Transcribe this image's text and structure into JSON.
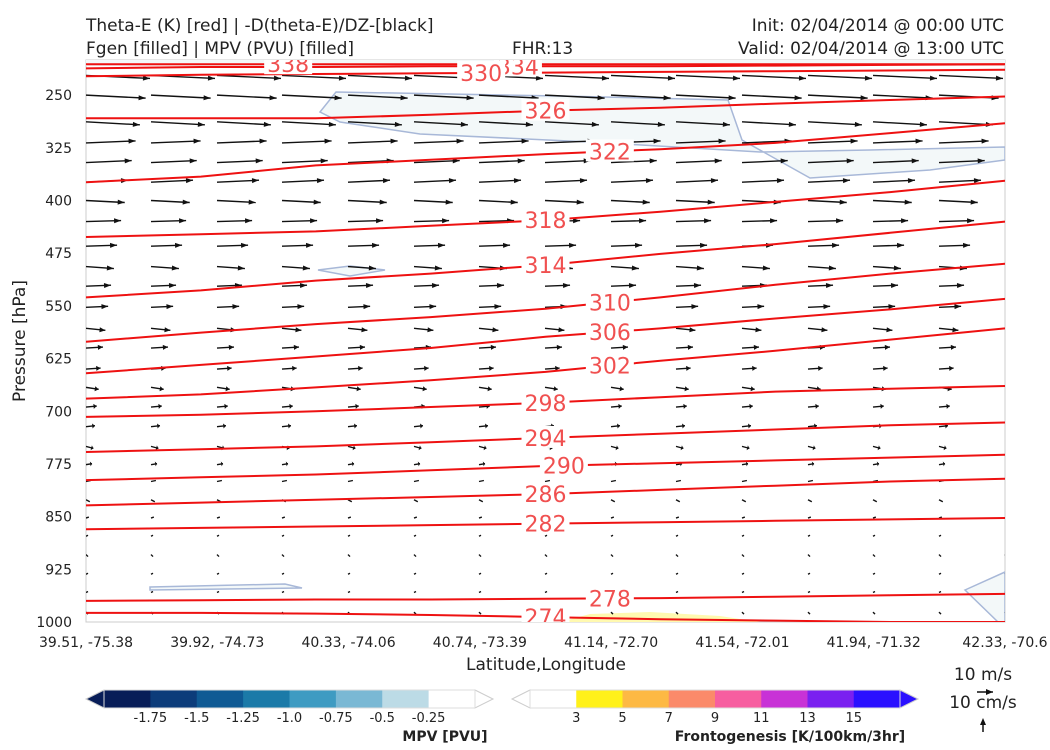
{
  "header": {
    "title_line1": "Theta-E (K) [red] | -D(theta-E)/DZ-[black]",
    "title_line2": "Fgen [filled] | MPV (PVU) [filled]",
    "fhr": "FHR:13",
    "init": "Init: 02/04/2014 @ 00:00 UTC",
    "valid": "Valid: 02/04/2014 @ 13:00 UTC"
  },
  "chart_data": {
    "type": "cross-section",
    "xlabel": "Latitude,Longitude",
    "ylabel": "Pressure [hPa]",
    "x_ticks": [
      "39.51, -75.38",
      "39.92, -74.73",
      "40.33, -74.06",
      "40.74, -73.39",
      "41.14, -72.70",
      "41.54, -72.01",
      "41.94, -71.32",
      "42.33, -70.6"
    ],
    "y_ticks": [
      250,
      325,
      400,
      475,
      550,
      625,
      700,
      775,
      850,
      925,
      1000
    ],
    "ylim": [
      1000,
      200
    ],
    "theta_e_color": "#ee1111",
    "theta_e_contours": [
      {
        "value": 338,
        "label": "338",
        "y": [
          206,
          206,
          206,
          206,
          206,
          206,
          206,
          206,
          206
        ]
      },
      {
        "value": 334,
        "label": "334",
        "y": [
          212,
          210,
          210,
          209,
          209,
          209,
          208,
          207,
          206
        ]
      },
      {
        "value": 330,
        "label": "330",
        "y": [
          223,
          221,
          220,
          219,
          218,
          217,
          216,
          215,
          214
        ]
      },
      {
        "value": 326,
        "label": "326",
        "y": [
          283,
          283,
          283,
          278,
          272,
          268,
          262,
          257,
          252
        ]
      },
      {
        "value": 322,
        "label": "322",
        "y": [
          374,
          366,
          350,
          342,
          334,
          327,
          318,
          304,
          290
        ]
      },
      {
        "value": 318,
        "label": "318",
        "y": [
          452,
          448,
          444,
          436,
          428,
          416,
          402,
          388,
          372
        ]
      },
      {
        "value": 314,
        "label": "314",
        "y": [
          538,
          528,
          514,
          504,
          492,
          476,
          462,
          446,
          430
        ]
      },
      {
        "value": 310,
        "label": "310",
        "y": [
          601,
          588,
          576,
          566,
          554,
          538,
          520,
          504,
          490
        ]
      },
      {
        "value": 306,
        "label": "306",
        "y": [
          646,
          634,
          622,
          610,
          594,
          582,
          568,
          555,
          540
        ]
      },
      {
        "value": 302,
        "label": "302",
        "y": [
          682,
          676,
          666,
          656,
          644,
          628,
          614,
          598,
          582
        ]
      },
      {
        "value": 298,
        "label": "298",
        "y": [
          708,
          705,
          700,
          694,
          688,
          680,
          672,
          668,
          664
        ]
      },
      {
        "value": 294,
        "label": "294",
        "y": [
          758,
          754,
          750,
          744,
          738,
          732,
          726,
          720,
          716
        ]
      },
      {
        "value": 290,
        "label": "290",
        "y": [
          798,
          794,
          790,
          784,
          778,
          774,
          770,
          766,
          762
        ]
      },
      {
        "value": 286,
        "label": "286",
        "y": [
          834,
          830,
          826,
          822,
          818,
          812,
          806,
          800,
          796
        ]
      },
      {
        "value": 282,
        "label": "282",
        "y": [
          868,
          866,
          864,
          862,
          860,
          858,
          856,
          854,
          852
        ]
      },
      {
        "value": 278,
        "label": "278",
        "y": [
          970,
          969,
          968,
          968,
          967,
          966,
          964,
          962,
          960
        ]
      },
      {
        "value": 274,
        "label": "274",
        "y": [
          987,
          987,
          988,
          990,
          993,
          996,
          998,
          1000,
          1000
        ]
      }
    ],
    "colorbars": [
      {
        "title": "MPV [PVU]",
        "tick_labels": [
          "-1.75",
          "-1.5",
          "-1.25",
          "-1.0",
          "-0.75",
          "-0.5",
          "-0.25"
        ],
        "colors": [
          "#081d58",
          "#0c3c7a",
          "#0f5a94",
          "#1b7aa8",
          "#3e9bc2",
          "#7ab8d4",
          "#bcdbe6",
          "#ffffff"
        ]
      },
      {
        "title": "Frontogenesis [K/100km/3hr]",
        "tick_labels": [
          "3",
          "5",
          "7",
          "9",
          "11",
          "13",
          "15"
        ],
        "colors": [
          "#ffffff",
          "#fff11a",
          "#fdb944",
          "#fb8a6a",
          "#f75ea0",
          "#c832d6",
          "#7a20f0",
          "#2a10ff"
        ]
      }
    ],
    "reference_vector": {
      "label_h": "10 m/s",
      "label_v": "10 cm/s"
    }
  }
}
